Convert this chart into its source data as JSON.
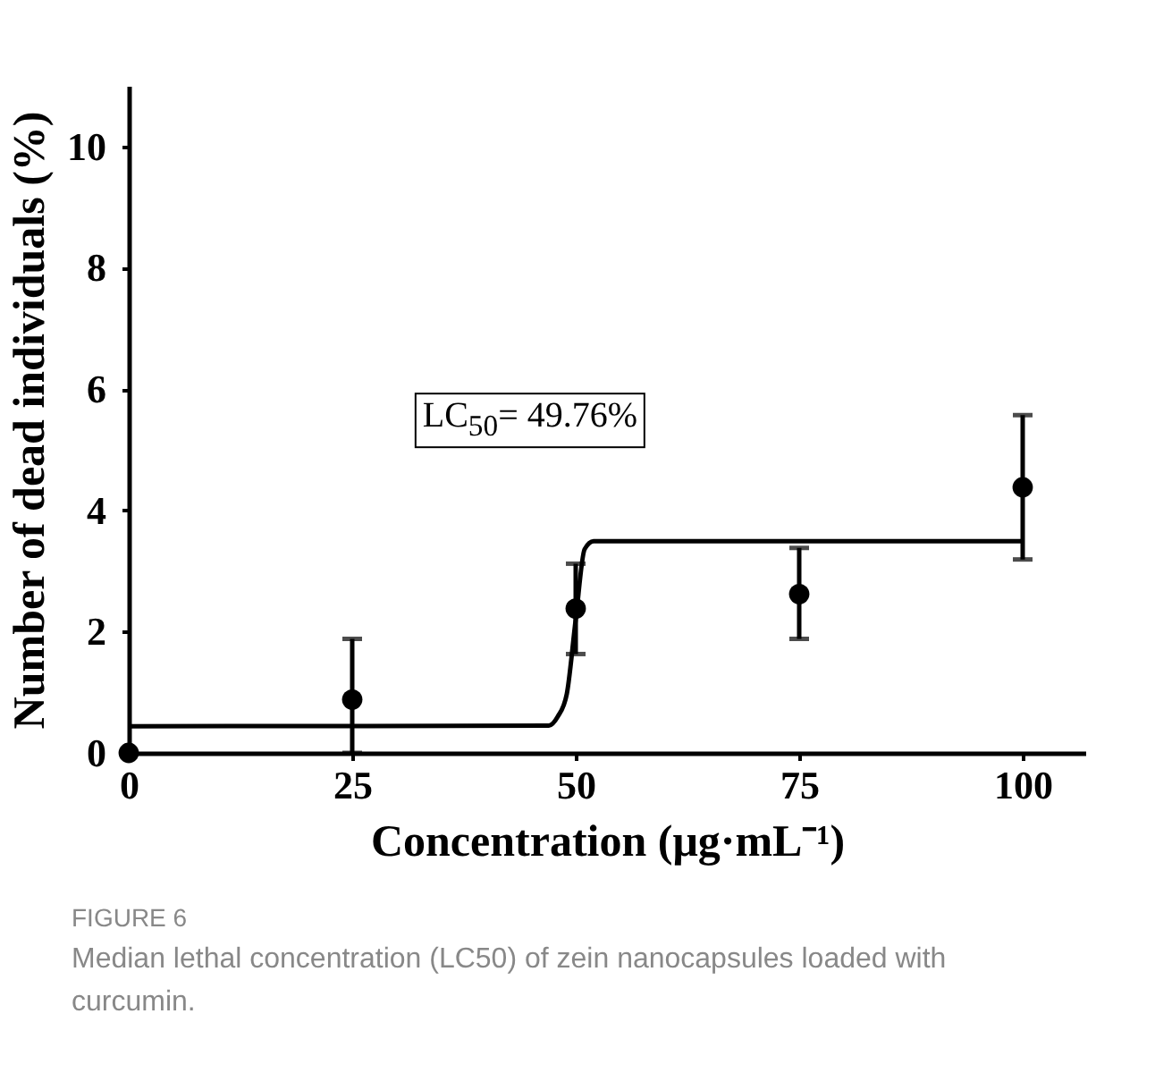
{
  "chart_data": {
    "type": "scatter",
    "xlabel": "Concentration (μg·mL⁻¹)",
    "ylabel": "Number of dead individuals (%)",
    "xlim": [
      0,
      107
    ],
    "ylim": [
      0,
      11
    ],
    "xticks": [
      0,
      25,
      50,
      75,
      100
    ],
    "yticks": [
      0,
      2,
      4,
      6,
      8,
      10
    ],
    "grid": false,
    "series": [
      {
        "marker": "circle",
        "color": "#000000",
        "x": [
          0,
          25,
          50,
          75,
          100
        ],
        "values": [
          0,
          0.88,
          2.38,
          2.62,
          4.38
        ],
        "errors": [
          null,
          [
            0,
            1.88
          ],
          [
            1.63,
            3.12
          ],
          [
            1.88,
            3.38
          ],
          [
            3.19,
            5.57
          ]
        ]
      },
      {
        "type": "line",
        "color": "#000000",
        "x": [
          0,
          47,
          48,
          49,
          50,
          51,
          52,
          100
        ],
        "values": [
          0.44,
          0.45,
          0.6,
          0.97,
          2.2,
          3.36,
          3.49,
          3.49
        ]
      }
    ],
    "annotations": [
      "LC$_{50}$= 49.76%",
      "FIGURE 6",
      "Median lethal concentration (LC50) of zein nanocapsules loaded with curcumin."
    ]
  }
}
